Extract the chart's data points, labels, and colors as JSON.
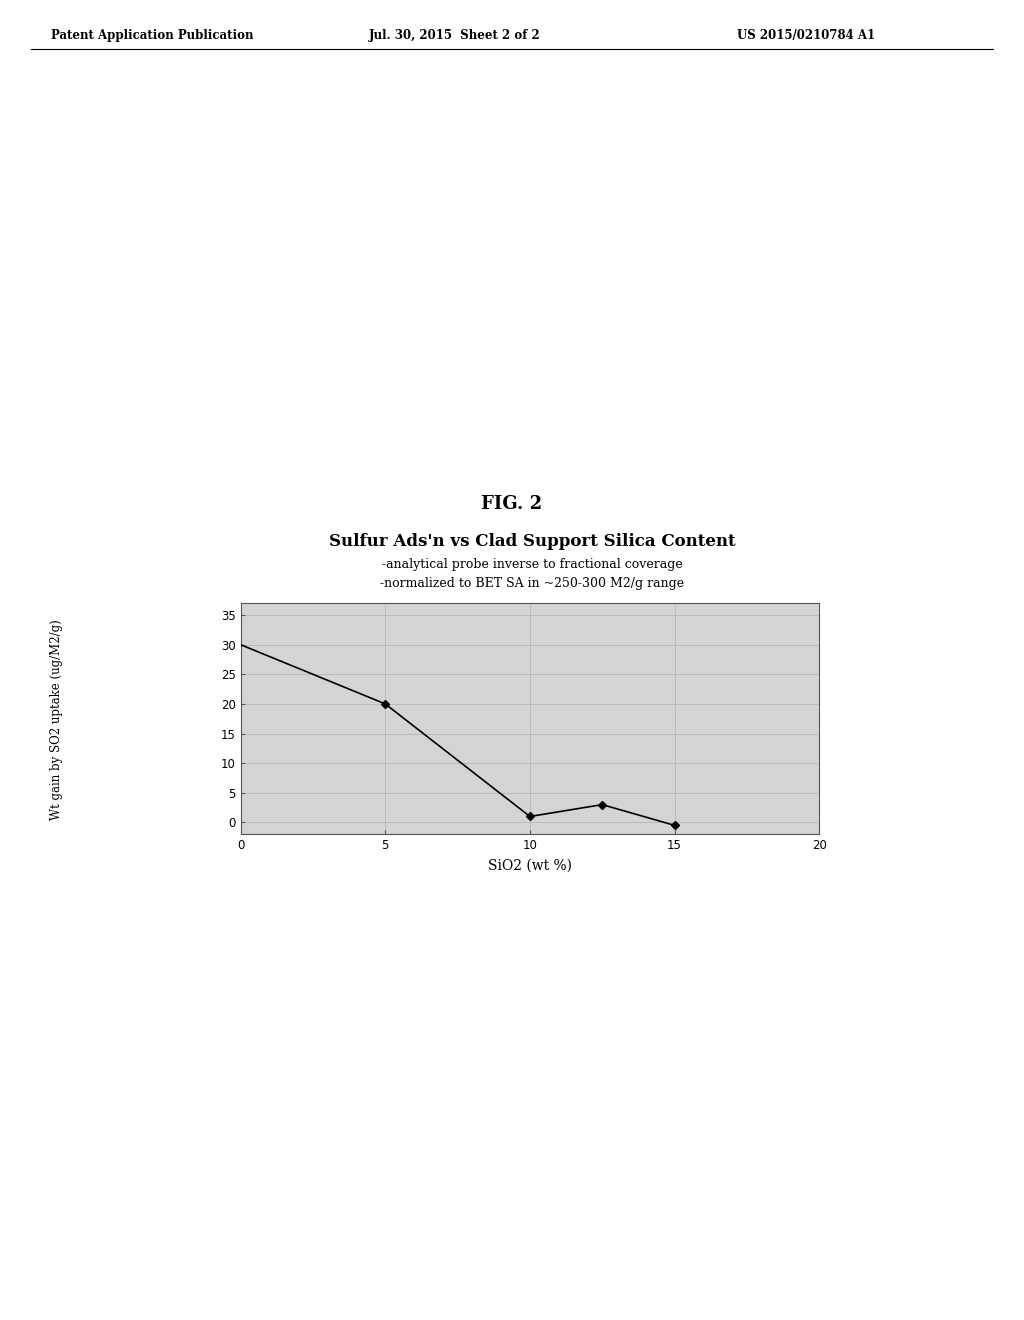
{
  "title": "Sulfur Ads'n vs Clad Support Silica Content",
  "subtitle1": "-analytical probe inverse to fractional coverage",
  "subtitle2": "-normalized to BET SA in ~250-300 M2/g range",
  "xlabel": "SiO2 (wt %)",
  "ylabel": "Wt gain by SO2 uptake (ug/M2/g)",
  "fig_label": "FIG. 2",
  "header_left": "Patent Application Publication",
  "header_center": "Jul. 30, 2015  Sheet 2 of 2",
  "header_right": "US 2015/0210784 A1",
  "x_data": [
    0,
    5,
    10,
    12.5,
    15
  ],
  "y_data": [
    30,
    20,
    1,
    3,
    -0.5
  ],
  "xlim": [
    0,
    20
  ],
  "ylim": [
    -2,
    37
  ],
  "xticks": [
    0,
    5,
    10,
    15,
    20
  ],
  "yticks": [
    0,
    5,
    10,
    15,
    20,
    25,
    30,
    35
  ],
  "grid_color": "#bbbbbb",
  "plot_bg_color": "#d4d4d4",
  "line_color": "#000000",
  "marker_color": "#000000",
  "page_bg_color": "#ffffff"
}
